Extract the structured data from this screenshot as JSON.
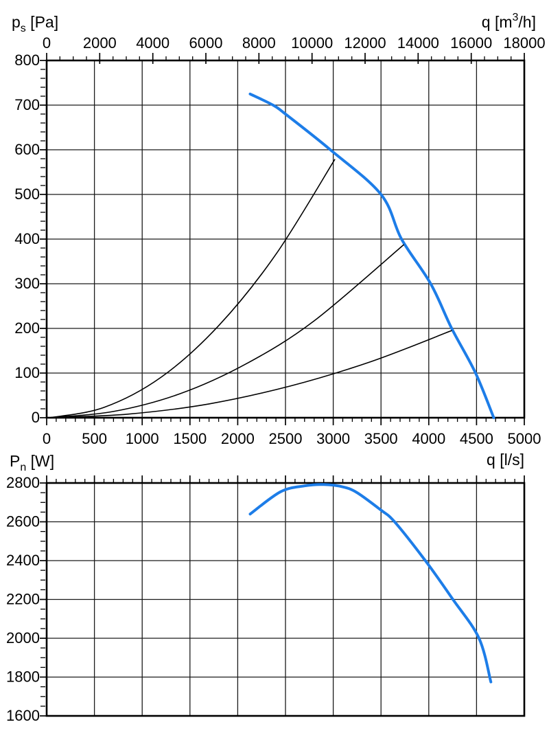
{
  "page": {
    "background": "#ffffff",
    "description_labels": {
      "pressure_axis": "ps [Pa]",
      "flow_top_axis": "q [m3/h]",
      "flow_bottom_axis": "q [l/s]",
      "power_axis": "Pn [W]"
    }
  },
  "colors": {
    "curve_blue": "#1d7de8",
    "curve_black": "#000000",
    "grid": "#1a1a1a",
    "axis": "#000000",
    "text": "#000000"
  },
  "chart_data": [
    {
      "type": "line",
      "id": "pressure-chart",
      "x_min": 0,
      "x_max": 5000,
      "y_min": 0,
      "y_max": 800,
      "x_grid_step": 500,
      "y_grid_step": 100,
      "y_title_segments": [
        {
          "t": "p"
        },
        {
          "t": "s",
          "sub": true
        },
        {
          "t": " [Pa]"
        }
      ],
      "x_top_title_segments": [
        {
          "t": "q [m"
        },
        {
          "t": "3",
          "sup": true
        },
        {
          "t": "/h]"
        }
      ],
      "x_bottom_title_segments": [
        {
          "t": "q [l/s]"
        }
      ],
      "axes": {
        "top": {
          "scale_min": 0,
          "scale_max": 18000,
          "major": 2000,
          "minor": 500,
          "labels": [
            "0",
            "2000",
            "4000",
            "6000",
            "8000",
            "10000",
            "12000",
            "14000",
            "16000",
            "18000"
          ]
        },
        "bottom": {
          "scale_min": 0,
          "scale_max": 5000,
          "major": 500,
          "minor": 100,
          "labels": [
            "0",
            "500",
            "1000",
            "1500",
            "2000",
            "2500",
            "3000",
            "3500",
            "4000",
            "4500",
            "5000"
          ]
        },
        "left": {
          "major": 100,
          "minor": 20,
          "labels": [
            "0",
            "100",
            "200",
            "300",
            "400",
            "500",
            "600",
            "700",
            "800"
          ]
        }
      },
      "series": [
        {
          "name": "fan-pressure-curve",
          "color": "#1d7de8",
          "width": 4,
          "points": [
            [
              2130,
              725
            ],
            [
              2370,
              700
            ],
            [
              2500,
              680
            ],
            [
              2970,
              600
            ],
            [
              3500,
              500
            ],
            [
              3715,
              400
            ],
            [
              4020,
              300
            ],
            [
              4240,
              200
            ],
            [
              4490,
              100
            ],
            [
              4680,
              0
            ]
          ]
        },
        {
          "name": "system-curve-1",
          "color": "#000000",
          "width": 1.6,
          "points": [
            [
              30,
              0
            ],
            [
              600,
              23
            ],
            [
              1200,
              91
            ],
            [
              1800,
              206
            ],
            [
              2400,
              366
            ],
            [
              3015,
              578
            ]
          ]
        },
        {
          "name": "system-curve-2",
          "color": "#000000",
          "width": 1.6,
          "points": [
            [
              30,
              0
            ],
            [
              700,
              14
            ],
            [
              1400,
              54
            ],
            [
              2100,
              122
            ],
            [
              2800,
              217
            ],
            [
              3736,
              387
            ]
          ]
        },
        {
          "name": "system-curve-3",
          "color": "#000000",
          "width": 1.6,
          "points": [
            [
              30,
              0
            ],
            [
              850,
              8
            ],
            [
              1700,
              31
            ],
            [
              2550,
              71
            ],
            [
              3400,
              126
            ],
            [
              4238,
              195
            ]
          ]
        }
      ]
    },
    {
      "type": "line",
      "id": "power-chart",
      "x_min": 0,
      "x_max": 5000,
      "y_min": 1600,
      "y_max": 2800,
      "x_grid_step": 500,
      "y_grid_step": 200,
      "y_title_segments": [
        {
          "t": "P"
        },
        {
          "t": "n",
          "sub": true
        },
        {
          "t": " [W]"
        }
      ],
      "axes": {
        "top": {
          "scale_min": 0,
          "scale_max": 5000,
          "major": 500,
          "minor": 100,
          "labels": []
        },
        "left": {
          "major": 200,
          "minor": 50,
          "labels": [
            "1600",
            "1800",
            "2000",
            "2200",
            "2400",
            "2600",
            "2800"
          ]
        }
      },
      "series": [
        {
          "name": "fan-power-curve",
          "color": "#1d7de8",
          "width": 4,
          "points": [
            [
              2130,
              2640
            ],
            [
              2450,
              2755
            ],
            [
              2700,
              2785
            ],
            [
              2900,
              2792
            ],
            [
              3100,
              2780
            ],
            [
              3250,
              2750
            ],
            [
              3500,
              2660
            ],
            [
              3642,
              2600
            ],
            [
              3964,
              2400
            ],
            [
              4253,
              2200
            ],
            [
              4526,
              2000
            ],
            [
              4650,
              1775
            ]
          ]
        }
      ]
    }
  ]
}
